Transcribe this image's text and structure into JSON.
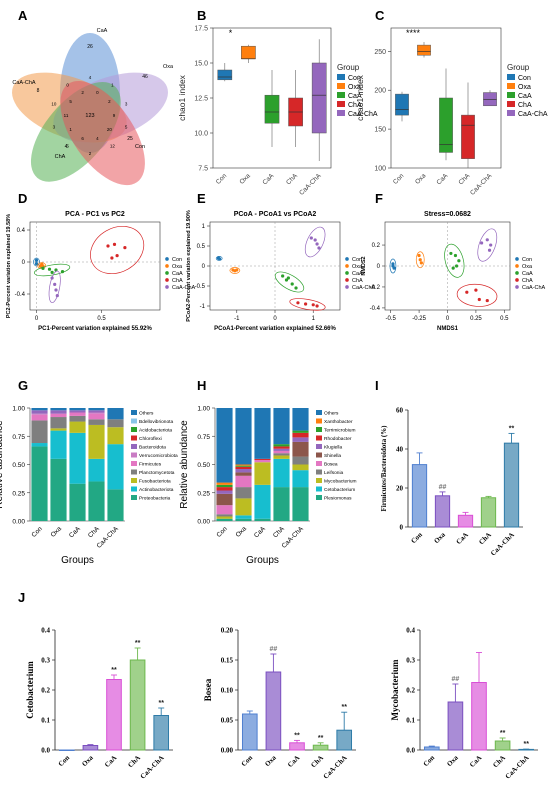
{
  "panels": {
    "A": "A",
    "B": "B",
    "C": "C",
    "D": "D",
    "E": "E",
    "F": "F",
    "G": "G",
    "H": "H",
    "I": "I",
    "J": "J"
  },
  "colors": {
    "Con": "#1f77b4",
    "Oxa": "#ff7f0e",
    "CaA": "#2ca02c",
    "ChA": "#d62728",
    "CaA-ChA": "#9467bd"
  },
  "groups": [
    "Con",
    "Oxa",
    "CaA",
    "ChA",
    "CaA-ChA"
  ],
  "legend_title": "Group",
  "chart_data": [
    {
      "id": "A",
      "type": "venn",
      "sets": [
        {
          "name": "CaA",
          "color": "#5b8fd6",
          "unique": "26"
        },
        {
          "name": "CaA-ChA",
          "color": "#f29b4d",
          "unique": "8"
        },
        {
          "name": "Oxa",
          "color": "#b49ad8",
          "unique": "46"
        },
        {
          "name": "ChA",
          "color": "#55b054",
          "unique": "4"
        },
        {
          "name": "Con",
          "color": "#e8595f",
          "unique": "25"
        }
      ],
      "center": "123",
      "inner": [
        "9",
        "5",
        "20",
        "12",
        "4",
        "2",
        "6",
        "5",
        "1",
        "3",
        "11",
        "10",
        "5",
        "0",
        "2",
        "4",
        "0",
        "1",
        "2",
        "3"
      ]
    },
    {
      "id": "B",
      "type": "box",
      "ylabel": "chao1 index",
      "ylim": [
        7.5,
        17.5
      ],
      "yticks": [
        7.5,
        10.0,
        12.5,
        15.0,
        17.5
      ],
      "categories": [
        "Con",
        "Oxa",
        "CaA",
        "ChA",
        "CaA-ChA"
      ],
      "boxes": [
        {
          "min": 13.7,
          "q1": 13.8,
          "median": 14.0,
          "q3": 14.5,
          "max": 15.0
        },
        {
          "min": 15.0,
          "q1": 15.3,
          "median": 15.3,
          "q3": 16.2,
          "max": 16.3
        },
        {
          "min": 9.0,
          "q1": 10.7,
          "median": 11.5,
          "q3": 12.7,
          "max": 14.5
        },
        {
          "min": 9.0,
          "q1": 10.5,
          "median": 11.5,
          "q3": 12.5,
          "max": 14.5
        },
        {
          "min": 8.0,
          "q1": 10.0,
          "median": 12.7,
          "q3": 15.0,
          "max": 16.7
        }
      ],
      "annotation": "*"
    },
    {
      "id": "C",
      "type": "box",
      "ylabel": "chao1 index",
      "ylim": [
        100,
        280
      ],
      "yticks": [
        100,
        150,
        200,
        250
      ],
      "categories": [
        "Con",
        "Oxa",
        "CaA",
        "ChA",
        "CaA-ChA"
      ],
      "boxes": [
        {
          "min": 160,
          "q1": 168,
          "median": 175,
          "q3": 195,
          "max": 198
        },
        {
          "min": 242,
          "q1": 245,
          "median": 250,
          "q3": 258,
          "max": 262
        },
        {
          "min": 110,
          "q1": 120,
          "median": 130,
          "q3": 190,
          "max": 228
        },
        {
          "min": 100,
          "q1": 112,
          "median": 155,
          "q3": 168,
          "max": 210
        },
        {
          "min": 180,
          "q1": 180,
          "median": 188,
          "q3": 197,
          "max": 200
        }
      ],
      "annotation": "****"
    },
    {
      "id": "D",
      "type": "scatter",
      "title": "PCA - PC1 vs PC2",
      "xlabel": "PC1-Percent variation explained 55.92%",
      "ylabel": "PC2-Percent variation explained 19.58%",
      "xlim": [
        -0.05,
        0.95
      ],
      "ylim": [
        -0.6,
        0.5
      ],
      "xticks": [
        0,
        0.5
      ],
      "yticks": [
        -0.4,
        0.0,
        0.4
      ],
      "points": {
        "Con": [
          [
            0.0,
            0.02
          ],
          [
            0.0,
            -0.02
          ]
        ],
        "Oxa": [
          [
            0.03,
            -0.05
          ],
          [
            0.05,
            -0.05
          ],
          [
            0.04,
            -0.03
          ]
        ],
        "CaA": [
          [
            0.1,
            -0.09
          ],
          [
            0.15,
            -0.1
          ],
          [
            0.2,
            -0.12
          ],
          [
            0.12,
            -0.13
          ],
          [
            0.05,
            -0.08
          ]
        ],
        "ChA": [
          [
            0.55,
            0.2
          ],
          [
            0.6,
            0.22
          ],
          [
            0.68,
            0.18
          ],
          [
            0.62,
            0.08
          ],
          [
            0.58,
            0.05
          ]
        ],
        "CaA-ChA": [
          [
            0.12,
            -0.2
          ],
          [
            0.14,
            -0.28
          ],
          [
            0.15,
            -0.35
          ],
          [
            0.16,
            -0.42
          ]
        ]
      }
    },
    {
      "id": "E",
      "type": "scatter",
      "title": "PCoA - PCoA1 vs PCoA2",
      "xlabel": "PCoA1-Percent variation explained 52.66%",
      "ylabel": "PCoA2-Percent variation explained 19.90%",
      "xlim": [
        -1.7,
        1.7
      ],
      "ylim": [
        -1.1,
        1.1
      ],
      "xticks": [
        -1,
        0,
        1
      ],
      "yticks": [
        -1.0,
        -0.5,
        0.0,
        0.5,
        1.0
      ],
      "points": {
        "Con": [
          [
            -1.48,
            0.2
          ],
          [
            -1.45,
            0.18
          ]
        ],
        "Oxa": [
          [
            -1.1,
            -0.1
          ],
          [
            -1.05,
            -0.12
          ],
          [
            -1.0,
            -0.1
          ]
        ],
        "CaA": [
          [
            0.2,
            -0.25
          ],
          [
            0.3,
            -0.35
          ],
          [
            0.45,
            -0.45
          ],
          [
            0.55,
            -0.55
          ],
          [
            0.35,
            -0.3
          ]
        ],
        "ChA": [
          [
            0.6,
            -0.92
          ],
          [
            0.8,
            -0.95
          ],
          [
            1.0,
            -0.97
          ],
          [
            1.1,
            -1.0
          ]
        ],
        "CaA-ChA": [
          [
            0.95,
            0.7
          ],
          [
            1.05,
            0.65
          ],
          [
            1.1,
            0.55
          ],
          [
            1.15,
            0.45
          ]
        ]
      }
    },
    {
      "id": "F",
      "type": "scatter",
      "title": "Stress=0.0682",
      "xlabel": "NMDS1",
      "ylabel": "NMDS2",
      "xlim": [
        -0.55,
        0.55
      ],
      "ylim": [
        -0.42,
        0.42
      ],
      "xticks": [
        -0.5,
        -0.25,
        0,
        0.25,
        0.5
      ],
      "yticks": [
        -0.4,
        -0.2,
        0.0,
        0.2
      ],
      "points": {
        "Con": [
          [
            -0.48,
            0.0
          ],
          [
            -0.47,
            -0.02
          ],
          [
            -0.48,
            0.02
          ]
        ],
        "Oxa": [
          [
            -0.25,
            0.1
          ],
          [
            -0.24,
            0.06
          ],
          [
            -0.23,
            0.03
          ]
        ],
        "CaA": [
          [
            0.03,
            0.12
          ],
          [
            0.07,
            0.1
          ],
          [
            0.1,
            0.05
          ],
          [
            0.08,
            0.0
          ],
          [
            0.05,
            -0.02
          ]
        ],
        "ChA": [
          [
            0.17,
            -0.25
          ],
          [
            0.25,
            -0.23
          ],
          [
            0.28,
            -0.32
          ],
          [
            0.35,
            -0.33
          ]
        ],
        "CaA-ChA": [
          [
            0.3,
            0.22
          ],
          [
            0.35,
            0.25
          ],
          [
            0.38,
            0.2
          ],
          [
            0.37,
            0.15
          ]
        ]
      }
    },
    {
      "id": "G",
      "type": "stacked-bar",
      "ylabel": "Relative abundance",
      "xlabel": "Groups",
      "ylim": [
        0,
        1
      ],
      "yticks": [
        0.0,
        0.25,
        0.5,
        0.75,
        1.0
      ],
      "categories": [
        "Con",
        "Oxa",
        "CaA",
        "ChA",
        "CaA-ChA"
      ],
      "legend": [
        "Others",
        "Bdellovibrionota",
        "Acidobacteriota",
        "Chloroflexi",
        "Bacteroidota",
        "Verrucomicrobiota",
        "Firmicutes",
        "Planctomycetota",
        "Fusobacteriota",
        "Actinobacteriota",
        "Proteobacteria"
      ],
      "legend_colors": [
        "#1f77b4",
        "#8bc6e8",
        "#2ca02c",
        "#d62728",
        "#9467bd",
        "#c97cc4",
        "#e377c2",
        "#7f7f7f",
        "#bcbd22",
        "#17becf",
        "#22a884"
      ],
      "series_bottom_to_top": [
        "Proteobacteria",
        "Actinobacteriota",
        "Fusobacteriota",
        "Planctomycetota",
        "Firmicutes",
        "Verrucomicrobiota",
        "Bacteroidota",
        "Chloroflexi",
        "Acidobacteriota",
        "Bdellovibrionota",
        "Others"
      ],
      "colors_bottom_to_top": [
        "#22a884",
        "#17becf",
        "#bcbd22",
        "#7f7f7f",
        "#e377c2",
        "#c97cc4",
        "#9467bd",
        "#d62728",
        "#2ca02c",
        "#8bc6e8",
        "#1f77b4"
      ],
      "values": [
        [
          0.66,
          0.03,
          0.0,
          0.2,
          0.05,
          0.01,
          0.03,
          0.0,
          0.0,
          0.0,
          0.02
        ],
        [
          0.55,
          0.25,
          0.02,
          0.1,
          0.03,
          0.0,
          0.03,
          0.0,
          0.0,
          0.0,
          0.02
        ],
        [
          0.33,
          0.45,
          0.1,
          0.05,
          0.03,
          0.0,
          0.02,
          0.0,
          0.0,
          0.0,
          0.02
        ],
        [
          0.35,
          0.2,
          0.3,
          0.05,
          0.05,
          0.01,
          0.02,
          0.0,
          0.0,
          0.0,
          0.02
        ],
        [
          0.28,
          0.4,
          0.15,
          0.07,
          0.0,
          0.0,
          0.0,
          0.0,
          0.0,
          0.0,
          0.1
        ]
      ]
    },
    {
      "id": "H",
      "type": "stacked-bar",
      "ylabel": "Relative abundance",
      "xlabel": "Groups",
      "ylim": [
        0,
        1
      ],
      "yticks": [
        0.0,
        0.25,
        0.5,
        0.75,
        1.0
      ],
      "categories": [
        "Con",
        "Oxa",
        "CaA",
        "ChA",
        "CaA-ChA"
      ],
      "legend": [
        "Others",
        "Xanthobacter",
        "Terrimicrobium",
        "Rhodobacter",
        "Klugiella",
        "Shinella",
        "Bosea",
        "Leifsonia",
        "Mycobacterium",
        "Cetobacterium",
        "Plesiomonas"
      ],
      "legend_colors": [
        "#1f77b4",
        "#ff7f0e",
        "#2ca02c",
        "#d62728",
        "#9467bd",
        "#8c564b",
        "#e377c2",
        "#7f7f7f",
        "#bcbd22",
        "#17becf",
        "#22a884"
      ],
      "series_bottom_to_top": [
        "Plesiomonas",
        "Cetobacterium",
        "Mycobacterium",
        "Leifsonia",
        "Bosea",
        "Shinella",
        "Klugiella",
        "Rhodobacter",
        "Terrimicrobium",
        "Xanthobacter",
        "Others"
      ],
      "colors_bottom_to_top": [
        "#22a884",
        "#17becf",
        "#bcbd22",
        "#7f7f7f",
        "#e377c2",
        "#8c564b",
        "#9467bd",
        "#d62728",
        "#2ca02c",
        "#ff7f0e",
        "#1f77b4"
      ],
      "values": [
        [
          0.02,
          0.0,
          0.02,
          0.02,
          0.08,
          0.1,
          0.03,
          0.03,
          0.02,
          0.02,
          0.66
        ],
        [
          0.02,
          0.03,
          0.15,
          0.1,
          0.1,
          0.03,
          0.03,
          0.02,
          0.01,
          0.01,
          0.5
        ],
        [
          0.02,
          0.3,
          0.2,
          0.0,
          0.02,
          0.0,
          0.0,
          0.01,
          0.0,
          0.0,
          0.45
        ],
        [
          0.3,
          0.25,
          0.03,
          0.02,
          0.02,
          0.0,
          0.02,
          0.02,
          0.02,
          0.0,
          0.32
        ],
        [
          0.3,
          0.15,
          0.05,
          0.07,
          0.0,
          0.13,
          0.04,
          0.04,
          0.02,
          0.0,
          0.2
        ]
      ]
    },
    {
      "id": "I",
      "type": "bar",
      "ylabel": "Firmicutes/Bacteroidota (%)",
      "ylim": [
        0,
        60
      ],
      "yticks": [
        0,
        20,
        40,
        60
      ],
      "categories": [
        "Con",
        "Oxa",
        "CaA",
        "ChA",
        "CaA-ChA"
      ],
      "values": [
        32,
        16,
        6,
        15,
        43
      ],
      "errors": [
        6,
        2,
        1.5,
        0.7,
        5
      ],
      "annotations": [
        "",
        "##",
        "",
        "",
        "**"
      ],
      "colors": [
        "#4f7fd0",
        "#7b4fc0",
        "#d94fd6",
        "#6db84d",
        "#2e7ba8"
      ]
    },
    {
      "id": "J1",
      "type": "bar",
      "ylabel": "Cetobacterium",
      "ylim": [
        0,
        0.4
      ],
      "yticks": [
        0.0,
        0.1,
        0.2,
        0.3,
        0.4
      ],
      "categories": [
        "Con",
        "Oxa",
        "CaA",
        "ChA",
        "CaA-ChA"
      ],
      "values": [
        0.0,
        0.015,
        0.235,
        0.3,
        0.115
      ],
      "errors": [
        0.0,
        0.003,
        0.015,
        0.04,
        0.025
      ],
      "annotations": [
        "",
        "",
        "**",
        "**",
        "**"
      ],
      "colors": [
        "#4f7fd0",
        "#7b4fc0",
        "#d94fd6",
        "#6db84d",
        "#2e7ba8"
      ]
    },
    {
      "id": "J2",
      "type": "bar",
      "ylabel": "Bosea",
      "ylim": [
        0,
        0.2
      ],
      "yticks": [
        0.0,
        0.05,
        0.1,
        0.15,
        0.2
      ],
      "categories": [
        "Con",
        "Oxa",
        "CaA",
        "ChA",
        "CaA-ChA"
      ],
      "values": [
        0.06,
        0.13,
        0.012,
        0.008,
        0.033
      ],
      "errors": [
        0.005,
        0.03,
        0.004,
        0.004,
        0.03
      ],
      "annotations": [
        "",
        "##",
        "**",
        "**",
        "**"
      ],
      "colors": [
        "#4f7fd0",
        "#7b4fc0",
        "#d94fd6",
        "#6db84d",
        "#2e7ba8"
      ]
    },
    {
      "id": "J3",
      "type": "bar",
      "ylabel": "Mycobacterium",
      "ylim": [
        0,
        0.4
      ],
      "yticks": [
        0.0,
        0.1,
        0.2,
        0.3,
        0.4
      ],
      "categories": [
        "Con",
        "Oxa",
        "CaA",
        "ChA",
        "CaA-ChA"
      ],
      "values": [
        0.01,
        0.16,
        0.225,
        0.03,
        0.002
      ],
      "errors": [
        0.003,
        0.06,
        0.1,
        0.01,
        0.001
      ],
      "annotations": [
        "",
        "##",
        "",
        "**",
        "**"
      ],
      "colors": [
        "#4f7fd0",
        "#7b4fc0",
        "#d94fd6",
        "#6db84d",
        "#2e7ba8"
      ]
    }
  ]
}
